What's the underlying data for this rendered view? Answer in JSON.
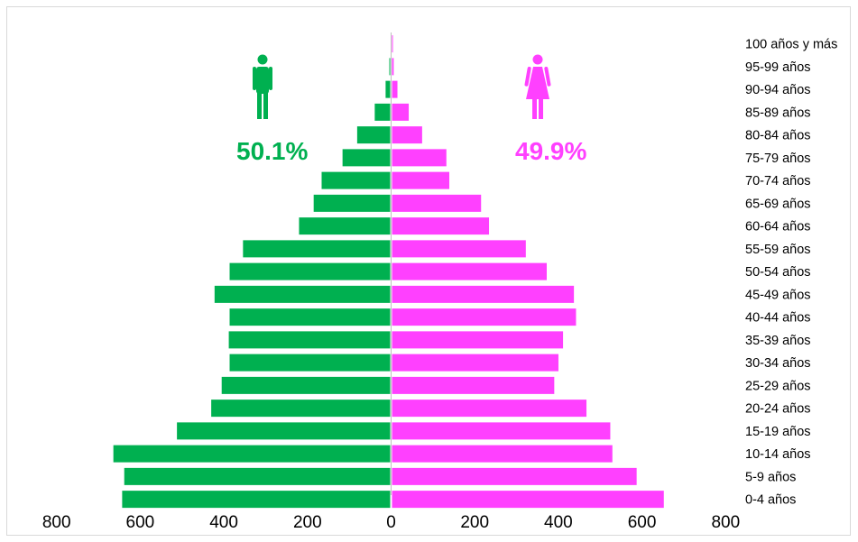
{
  "colors": {
    "male": "#00b050",
    "female": "#ff40ff",
    "axis": "#bfbfbf"
  },
  "icons": {
    "male": "male-person-icon",
    "female": "female-person-icon"
  },
  "chart_data": {
    "type": "bar",
    "orientation": "horizontal",
    "title": "",
    "xlabel": "",
    "ylabel": "",
    "xlim": [
      -800,
      800
    ],
    "x_ticks": [
      800,
      600,
      400,
      200,
      0,
      200,
      400,
      600,
      800
    ],
    "grid": false,
    "categories": [
      "0-4 años",
      "5-9 años",
      "10-14 años",
      "15-19 años",
      "20-24 años",
      "25-29 años",
      "30-34 años",
      "35-39 años",
      "40-44 años",
      "45-49 años",
      "50-54 años",
      "55-59 años",
      "60-64 años",
      "65-69 años",
      "70-74 años",
      "75-79 años",
      "80-84 años",
      "85-89 años",
      "90-94 años",
      "95-99 años",
      "100 años y más"
    ],
    "series": [
      {
        "key": "male",
        "percent_label": "50.1%",
        "values": [
          641,
          636,
          662,
          510,
          428,
          403,
          384,
          386,
          384,
          420,
          384,
          352,
          218,
          183,
          164,
          114,
          79,
          37,
          11,
          1,
          0
        ]
      },
      {
        "key": "female",
        "percent_label": "49.9%",
        "values": [
          650,
          585,
          527,
          522,
          465,
          388,
          398,
          409,
          440,
          435,
          370,
          320,
          232,
          213,
          137,
          130,
          72,
          40,
          13,
          4,
          1
        ]
      }
    ]
  }
}
